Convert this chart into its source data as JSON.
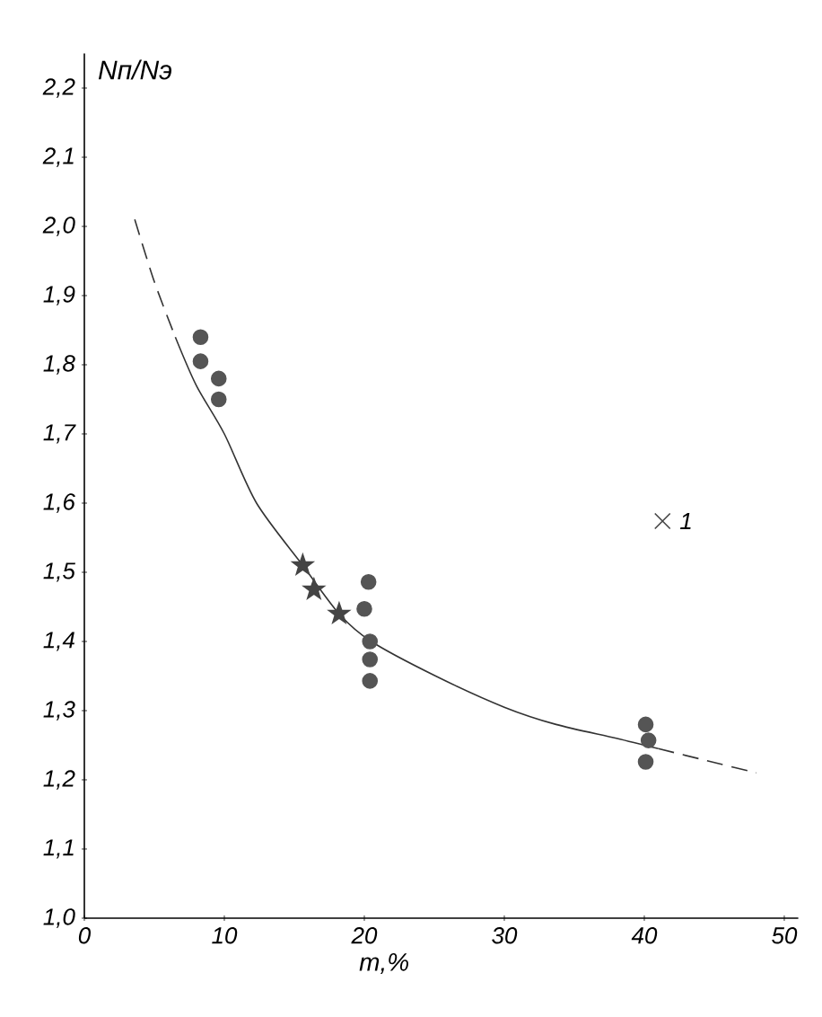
{
  "chart_data": {
    "type": "scatter",
    "xlabel": "m,%",
    "ylabel": "Nп/Nэ",
    "xlim": [
      0,
      51
    ],
    "ylim": [
      1.0,
      2.25
    ],
    "xticks": [
      0,
      10,
      20,
      30,
      40,
      50
    ],
    "yticks": [
      {
        "value": 1.0,
        "label": "1,0"
      },
      {
        "value": 1.1,
        "label": "1,1"
      },
      {
        "value": 1.2,
        "label": "1,2"
      },
      {
        "value": 1.3,
        "label": "1,3"
      },
      {
        "value": 1.4,
        "label": "1,4"
      },
      {
        "value": 1.5,
        "label": "1,5"
      },
      {
        "value": 1.6,
        "label": "1,6"
      },
      {
        "value": 1.7,
        "label": "1,7"
      },
      {
        "value": 1.8,
        "label": "1,8"
      },
      {
        "value": 1.9,
        "label": "1,9"
      },
      {
        "value": 2.0,
        "label": "2,0"
      },
      {
        "value": 2.1,
        "label": "2,1"
      },
      {
        "value": 2.2,
        "label": "2,2"
      }
    ],
    "series": [
      {
        "type": "line",
        "line_style": "dashed",
        "color": "#333333",
        "x": [
          3.6,
          5,
          6.5
        ],
        "values": [
          2.01,
          1.92,
          1.84
        ]
      },
      {
        "type": "line",
        "line_style": "solid",
        "color": "#333333",
        "x": [
          6.5,
          8,
          10,
          12.3,
          15.6,
          18.2,
          20.5,
          25.1,
          30,
          33.7,
          38,
          41
        ],
        "values": [
          1.84,
          1.77,
          1.7,
          1.6,
          1.51,
          1.44,
          1.4,
          1.35,
          1.305,
          1.28,
          1.26,
          1.245
        ]
      },
      {
        "type": "line",
        "line_style": "dashed",
        "color": "#333333",
        "x": [
          41,
          44,
          48
        ],
        "values": [
          1.245,
          1.23,
          1.21
        ]
      },
      {
        "marker": "circle",
        "color": "#555555",
        "x": [
          8.3,
          8.3,
          9.6,
          9.6,
          20.3,
          20.0,
          20.4,
          20.4,
          20.4,
          40.1,
          40.3,
          40.1
        ],
        "values": [
          1.84,
          1.805,
          1.78,
          1.75,
          1.486,
          1.447,
          1.4,
          1.374,
          1.343,
          1.28,
          1.257,
          1.226
        ]
      },
      {
        "marker": "star",
        "color": "#444444",
        "x": [
          15.6,
          16.4,
          18.2
        ],
        "values": [
          1.51,
          1.475,
          1.44
        ]
      },
      {
        "marker": "cross",
        "name": "1",
        "color": "#444444",
        "x": [
          41.3
        ],
        "values": [
          1.574
        ]
      }
    ]
  }
}
